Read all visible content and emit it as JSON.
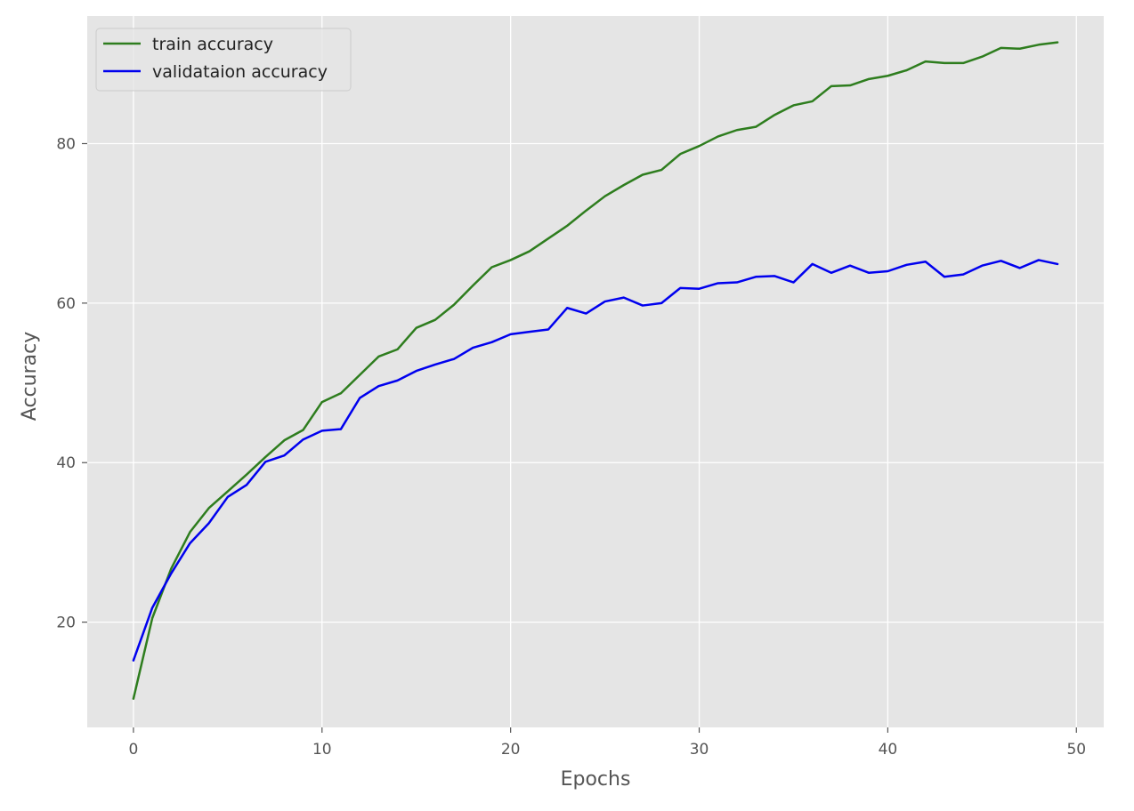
{
  "chart_data": {
    "type": "line",
    "title": "",
    "xlabel": "Epochs",
    "ylabel": "Accuracy",
    "xlim": [
      -2.45,
      51.45
    ],
    "ylim": [
      6.8,
      96.0
    ],
    "xticks": [
      0,
      10,
      20,
      30,
      40,
      50
    ],
    "yticks": [
      20,
      40,
      60,
      80
    ],
    "grid": true,
    "legend_position": "top-left",
    "x": [
      0,
      1,
      2,
      3,
      4,
      5,
      6,
      7,
      8,
      9,
      10,
      11,
      12,
      13,
      14,
      15,
      16,
      17,
      18,
      19,
      20,
      21,
      22,
      23,
      24,
      25,
      26,
      27,
      28,
      29,
      30,
      31,
      32,
      33,
      34,
      35,
      36,
      37,
      38,
      39,
      40,
      41,
      42,
      43,
      44,
      45,
      46,
      47,
      48,
      49
    ],
    "series": [
      {
        "name": "train accuracy",
        "color": "#2e7d1e",
        "values": [
          10.4,
          20.5,
          26.7,
          31.3,
          34.3,
          36.4,
          38.5,
          40.7,
          42.8,
          44.1,
          47.6,
          48.7,
          51.0,
          53.3,
          54.2,
          56.9,
          57.9,
          59.8,
          62.2,
          64.5,
          65.4,
          66.5,
          68.1,
          69.7,
          71.6,
          73.4,
          74.8,
          76.1,
          76.7,
          78.7,
          79.7,
          80.9,
          81.7,
          82.1,
          83.6,
          84.8,
          85.3,
          87.2,
          87.3,
          88.1,
          88.5,
          89.2,
          90.3,
          90.1,
          90.1,
          90.9,
          92.0,
          91.9,
          92.4,
          92.7
        ]
      },
      {
        "name": "validataion accuracy",
        "color": "#0000ee",
        "values": [
          15.2,
          21.8,
          26.1,
          29.9,
          32.4,
          35.7,
          37.2,
          40.1,
          40.9,
          42.9,
          44.0,
          44.2,
          48.1,
          49.6,
          50.3,
          51.5,
          52.3,
          53.0,
          54.4,
          55.1,
          56.1,
          56.4,
          56.7,
          59.4,
          58.7,
          60.2,
          60.7,
          59.7,
          60.0,
          61.9,
          61.8,
          62.5,
          62.6,
          63.3,
          63.4,
          62.6,
          64.9,
          63.8,
          64.7,
          63.8,
          64.0,
          64.8,
          65.2,
          63.3,
          63.6,
          64.7,
          65.3,
          64.4,
          65.4,
          64.9
        ]
      }
    ]
  }
}
